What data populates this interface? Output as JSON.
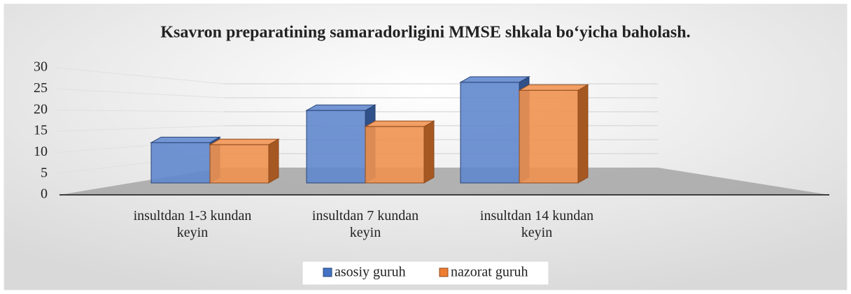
{
  "chart_data": {
    "type": "bar3d",
    "title": "Ksavron preparatining samaradorligini MMSE shkala bo‘yicha baholash.",
    "categories": [
      "insultdan 1-3 kundan keyin",
      "insultdan 7 kundan keyin",
      "insultdan 14 kundan keyin"
    ],
    "series": [
      {
        "name": "asosiy guruh",
        "color": "#4472c4",
        "values": [
          10,
          18,
          25
        ]
      },
      {
        "name": "nazorat guruh",
        "color": "#ed7d31",
        "values": [
          9.5,
          14,
          23
        ]
      }
    ],
    "ylim": [
      0,
      30
    ],
    "yticks": [
      0,
      5,
      10,
      15,
      20,
      25,
      30
    ],
    "grid": true,
    "legend": "bottom"
  }
}
